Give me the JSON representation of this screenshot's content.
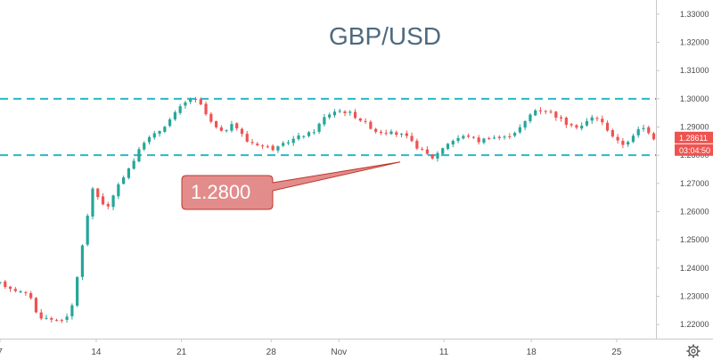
{
  "chart_data": {
    "type": "candlestick",
    "title": "GBP/USD",
    "ylim": [
      1.215,
      1.335
    ],
    "xlim": [
      0,
      30
    ],
    "y_ticks": [
      "1.33000",
      "1.32000",
      "1.31000",
      "1.30000",
      "1.29000",
      "1.28000",
      "1.27000",
      "1.26000",
      "1.25000",
      "1.24000",
      "1.23000",
      "1.22000"
    ],
    "x_ticks": [
      {
        "label": "7",
        "x": 0
      },
      {
        "label": "14",
        "x": 4.4
      },
      {
        "label": "21",
        "x": 8.3
      },
      {
        "label": "28",
        "x": 12.4
      },
      {
        "label": "Nov",
        "x": 15.5
      },
      {
        "label": "11",
        "x": 20.3
      },
      {
        "label": "18",
        "x": 24.3
      },
      {
        "label": "25",
        "x": 28.2
      }
    ],
    "close_path": [
      [
        0,
        1.2345
      ],
      [
        1.4,
        1.23
      ],
      [
        1.7,
        1.223
      ],
      [
        2.5,
        1.2215
      ],
      [
        3.2,
        1.2225
      ],
      [
        3.6,
        1.24
      ],
      [
        4.2,
        1.268
      ],
      [
        4.9,
        1.261
      ],
      [
        5.6,
        1.272
      ],
      [
        6.1,
        1.278
      ],
      [
        6.6,
        1.285
      ],
      [
        7.2,
        1.288
      ],
      [
        7.7,
        1.292
      ],
      [
        8.3,
        1.2975
      ],
      [
        8.8,
        1.3005
      ],
      [
        9.2,
        1.2975
      ],
      [
        9.6,
        1.292
      ],
      [
        10.1,
        1.288
      ],
      [
        10.7,
        1.291
      ],
      [
        11.3,
        1.285
      ],
      [
        12.0,
        1.2835
      ],
      [
        12.6,
        1.282
      ],
      [
        13.2,
        1.285
      ],
      [
        13.8,
        1.287
      ],
      [
        14.3,
        1.288
      ],
      [
        14.9,
        1.294
      ],
      [
        15.4,
        1.296
      ],
      [
        16.0,
        1.295
      ],
      [
        16.6,
        1.292
      ],
      [
        17.2,
        1.2885
      ],
      [
        17.8,
        1.288
      ],
      [
        18.5,
        1.287
      ],
      [
        19.2,
        1.282
      ],
      [
        19.8,
        1.279
      ],
      [
        20.4,
        1.284
      ],
      [
        20.9,
        1.286
      ],
      [
        21.4,
        1.287
      ],
      [
        21.9,
        1.285
      ],
      [
        22.4,
        1.2865
      ],
      [
        23.0,
        1.286
      ],
      [
        23.5,
        1.288
      ],
      [
        23.9,
        1.2905
      ],
      [
        24.4,
        1.296
      ],
      [
        25.0,
        1.296
      ],
      [
        25.6,
        1.293
      ],
      [
        26.1,
        1.29
      ],
      [
        26.6,
        1.2905
      ],
      [
        27.2,
        1.294
      ],
      [
        27.6,
        1.291
      ],
      [
        28.0,
        1.287
      ],
      [
        28.4,
        1.2835
      ],
      [
        28.9,
        1.286
      ],
      [
        29.3,
        1.29
      ],
      [
        29.6,
        1.289
      ],
      [
        29.9,
        1.2861
      ]
    ],
    "annotations": {
      "resistance": 1.3,
      "support": 1.28,
      "callout_label": "1.2800",
      "callout_pointer_x": 18.3,
      "callout_pointer_y": 1.2776,
      "price_tag": "1.28611",
      "price_tag_value": 1.28611,
      "timer_tag": "03:04:50"
    },
    "colors": {
      "up": "#26a69a",
      "down": "#ef5350",
      "level_line": "#2ab7c9",
      "callout_fill": "#e28c8c",
      "callout_stroke": "#c0392b",
      "title": "#4e6a7f",
      "price_tag": "#ef5350"
    },
    "grid": false,
    "icons": [
      "settings-gear-icon"
    ]
  }
}
